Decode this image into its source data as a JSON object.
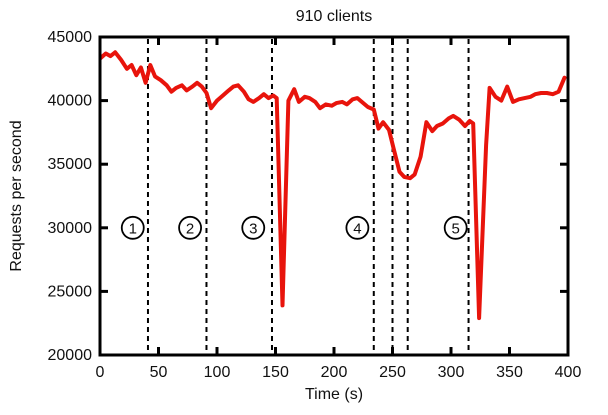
{
  "chart_data": {
    "type": "line",
    "title": "910 clients",
    "xlabel": "Time (s)",
    "ylabel": "Requests per second",
    "xlim": [
      0,
      400
    ],
    "ylim": [
      20000,
      45000
    ],
    "xticks": [
      0,
      50,
      100,
      150,
      200,
      250,
      300,
      350,
      400
    ],
    "yticks": [
      20000,
      25000,
      30000,
      35000,
      40000,
      45000
    ],
    "grid": false,
    "legend_position": "none",
    "frame_color": "#000000",
    "background_color": "#ffffff",
    "series": [
      {
        "name": "requests-per-second",
        "color": "#e8140c",
        "line_width": 4,
        "points": [
          [
            0,
            43300
          ],
          [
            5,
            43700
          ],
          [
            9,
            43500
          ],
          [
            13,
            43800
          ],
          [
            18,
            43200
          ],
          [
            23,
            42500
          ],
          [
            27,
            42800
          ],
          [
            31,
            42000
          ],
          [
            35,
            42600
          ],
          [
            39,
            41400
          ],
          [
            43,
            42800
          ],
          [
            47,
            41900
          ],
          [
            52,
            41600
          ],
          [
            57,
            41200
          ],
          [
            61,
            40700
          ],
          [
            65,
            41000
          ],
          [
            70,
            41200
          ],
          [
            74,
            40800
          ],
          [
            79,
            41100
          ],
          [
            83,
            41400
          ],
          [
            87,
            41100
          ],
          [
            91,
            40600
          ],
          [
            95,
            39400
          ],
          [
            100,
            40000
          ],
          [
            105,
            40400
          ],
          [
            110,
            40800
          ],
          [
            114,
            41100
          ],
          [
            118,
            41200
          ],
          [
            123,
            40700
          ],
          [
            127,
            40100
          ],
          [
            131,
            39900
          ],
          [
            136,
            40200
          ],
          [
            140,
            40500
          ],
          [
            144,
            40200
          ],
          [
            148,
            40400
          ],
          [
            151,
            40200
          ],
          [
            156,
            23900
          ],
          [
            161,
            40000
          ],
          [
            166,
            40900
          ],
          [
            170,
            39900
          ],
          [
            175,
            40300
          ],
          [
            179,
            40200
          ],
          [
            184,
            39900
          ],
          [
            188,
            39400
          ],
          [
            193,
            39700
          ],
          [
            198,
            39600
          ],
          [
            202,
            39800
          ],
          [
            207,
            39900
          ],
          [
            211,
            39700
          ],
          [
            216,
            40100
          ],
          [
            220,
            40200
          ],
          [
            225,
            39800
          ],
          [
            229,
            39500
          ],
          [
            234,
            39300
          ],
          [
            238,
            37800
          ],
          [
            242,
            38300
          ],
          [
            247,
            37700
          ],
          [
            251,
            36200
          ],
          [
            256,
            34400
          ],
          [
            260,
            34000
          ],
          [
            265,
            33900
          ],
          [
            269,
            34200
          ],
          [
            274,
            35600
          ],
          [
            279,
            38300
          ],
          [
            284,
            37600
          ],
          [
            288,
            38000
          ],
          [
            293,
            38200
          ],
          [
            298,
            38600
          ],
          [
            302,
            38800
          ],
          [
            307,
            38500
          ],
          [
            312,
            38000
          ],
          [
            316,
            38400
          ],
          [
            319,
            38200
          ],
          [
            324,
            22900
          ],
          [
            330,
            36500
          ],
          [
            333,
            41000
          ],
          [
            338,
            40300
          ],
          [
            343,
            40000
          ],
          [
            348,
            41100
          ],
          [
            353,
            39900
          ],
          [
            358,
            40100
          ],
          [
            363,
            40200
          ],
          [
            368,
            40300
          ],
          [
            372,
            40500
          ],
          [
            377,
            40600
          ],
          [
            382,
            40600
          ],
          [
            387,
            40500
          ],
          [
            392,
            40700
          ],
          [
            397,
            41800
          ]
        ]
      }
    ],
    "event_lines": {
      "style": "dashed-vertical",
      "color": "#000000",
      "x": [
        41,
        91,
        147,
        234,
        250,
        263,
        315
      ]
    },
    "annotations": [
      {
        "label": "1",
        "x": 28,
        "y": 30000
      },
      {
        "label": "2",
        "x": 77,
        "y": 30000
      },
      {
        "label": "3",
        "x": 131,
        "y": 30000
      },
      {
        "label": "4",
        "x": 220,
        "y": 30000
      },
      {
        "label": "5",
        "x": 304,
        "y": 30000
      }
    ]
  }
}
